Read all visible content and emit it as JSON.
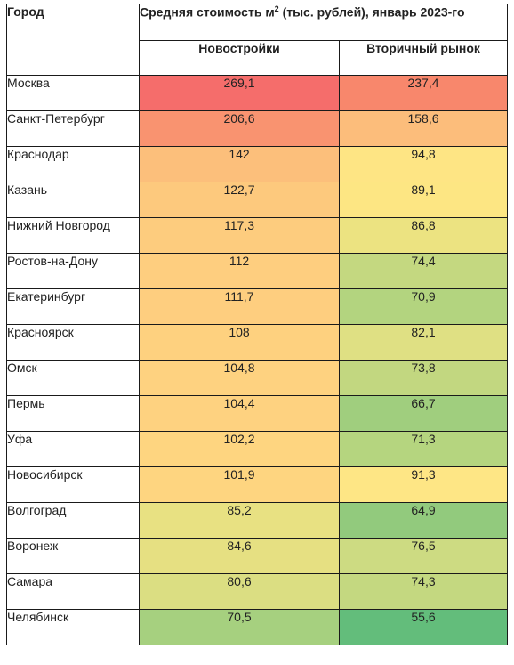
{
  "header": {
    "city_label": "Город",
    "title_prefix": "Средняя стоимость м",
    "title_sup": "2",
    "title_suffix": " (тыс. рублей), январь 2023-го",
    "col_new": "Новостройки",
    "col_secondary": "Вторичный рынок"
  },
  "chart_data": {
    "type": "table",
    "title": "Средняя стоимость м² (тыс. рублей), январь 2023-го",
    "columns": [
      "Город",
      "Новостройки",
      "Вторичный рынок"
    ],
    "rows": [
      {
        "city": "Москва",
        "new": "269,1",
        "secondary": "237,4",
        "new_color": "#f56d6b",
        "secondary_color": "#f8876c"
      },
      {
        "city": "Санкт-Петербург",
        "new": "206,6",
        "secondary": "158,6",
        "new_color": "#f99370",
        "secondary_color": "#fcbd7b"
      },
      {
        "city": "Краснодар",
        "new": "142",
        "secondary": "94,8",
        "new_color": "#fcbf7b",
        "secondary_color": "#fee584"
      },
      {
        "city": "Казань",
        "new": "122,7",
        "secondary": "89,1",
        "new_color": "#fdc97d",
        "secondary_color": "#fde683"
      },
      {
        "city": "Нижний Новгород",
        "new": "117,3",
        "secondary": "86,8",
        "new_color": "#fdcc7e",
        "secondary_color": "#ece381"
      },
      {
        "city": "Ростов-на-Дону",
        "new": "112",
        "secondary": "74,4",
        "new_color": "#fece7f",
        "secondary_color": "#c4d880"
      },
      {
        "city": "Екатеринбург",
        "new": "111,7",
        "secondary": "70,9",
        "new_color": "#fece7f",
        "secondary_color": "#b3d47f"
      },
      {
        "city": "Красноярск",
        "new": "108",
        "secondary": "82,1",
        "new_color": "#fed17f",
        "secondary_color": "#dfe083"
      },
      {
        "city": "Омск",
        "new": "104,8",
        "secondary": "73,8",
        "new_color": "#fed280",
        "secondary_color": "#c2d780"
      },
      {
        "city": "Пермь",
        "new": "104,4",
        "secondary": "66,7",
        "new_color": "#fed280",
        "secondary_color": "#a0ce7e"
      },
      {
        "city": "Уфа",
        "new": "102,2",
        "secondary": "71,3",
        "new_color": "#fed580",
        "secondary_color": "#b5d57f"
      },
      {
        "city": "Новосибирск",
        "new": "101,9",
        "secondary": "91,3",
        "new_color": "#fed580",
        "secondary_color": "#fee685"
      },
      {
        "city": "Волгоград",
        "new": "85,2",
        "secondary": "64,9",
        "new_color": "#e8e182",
        "secondary_color": "#92ca7d"
      },
      {
        "city": "Воронеж",
        "new": "84,6",
        "secondary": "76,5",
        "new_color": "#e6e082",
        "secondary_color": "#cddb82"
      },
      {
        "city": "Самара",
        "new": "80,6",
        "secondary": "74,3",
        "new_color": "#dbde82",
        "secondary_color": "#c4d880"
      },
      {
        "city": "Челябинск",
        "new": "70,5",
        "secondary": "55,6",
        "new_color": "#a6d07f",
        "secondary_color": "#63bd7b"
      }
    ]
  }
}
